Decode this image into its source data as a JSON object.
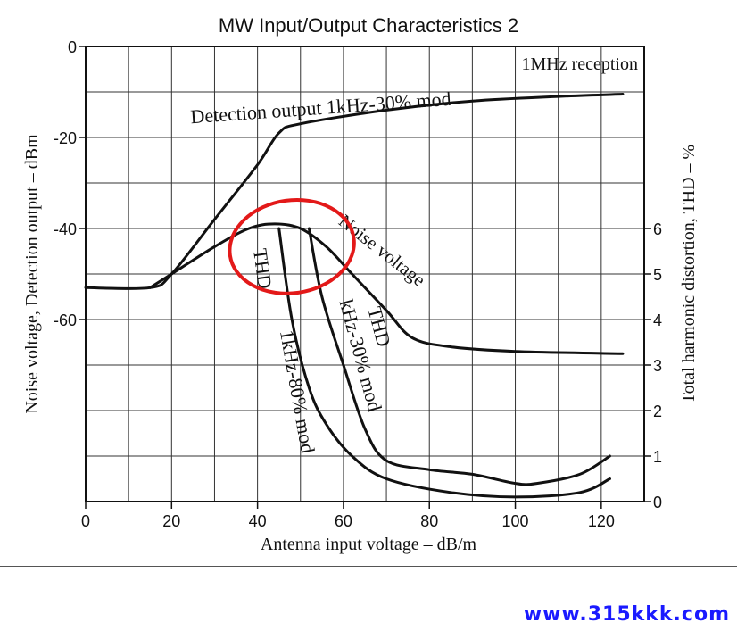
{
  "chart_data": {
    "type": "line",
    "title": "MW Input/Output Characteristics 2",
    "xlabel": "Antenna input voltage  –  dB/m",
    "ylabel_left": "Noise voltage, Detection output  –  dBm",
    "ylabel_right": "Total harmonic distortion, THD  –  %",
    "xlim": [
      0,
      130
    ],
    "ylim_left": [
      -100,
      0
    ],
    "ylim_right": [
      0,
      10
    ],
    "x_ticks": [
      "0",
      "20",
      "40",
      "60",
      "80",
      "100",
      "120"
    ],
    "y_left_ticks": [
      "0",
      "-20",
      "-40",
      "-60"
    ],
    "y_right_ticks": [
      "0",
      "1",
      "2",
      "3",
      "4",
      "5",
      "6"
    ],
    "annotation": "1MHz reception",
    "grid": true,
    "highlight": {
      "shape": "ellipse",
      "color": "#e31919",
      "center": [
        48,
        -44
      ]
    },
    "series": [
      {
        "name": "Detection output 1kHz-30% mod",
        "axis": "left",
        "points": [
          [
            0,
            -53
          ],
          [
            15,
            -53
          ],
          [
            20,
            -50
          ],
          [
            30,
            -38
          ],
          [
            40,
            -26
          ],
          [
            45,
            -19
          ],
          [
            50,
            -17
          ],
          [
            70,
            -14
          ],
          [
            90,
            -12
          ],
          [
            110,
            -11
          ],
          [
            125,
            -10.5
          ]
        ]
      },
      {
        "name": "Noise voltage",
        "axis": "left",
        "points": [
          [
            15,
            -53
          ],
          [
            20,
            -50
          ],
          [
            30,
            -44
          ],
          [
            38,
            -40
          ],
          [
            44,
            -39
          ],
          [
            50,
            -40
          ],
          [
            56,
            -44
          ],
          [
            62,
            -50
          ],
          [
            70,
            -58
          ],
          [
            76,
            -64
          ],
          [
            85,
            -66
          ],
          [
            100,
            -67
          ],
          [
            125,
            -67.5
          ]
        ]
      },
      {
        "name": "THD kHz-30% mod",
        "axis": "right",
        "points": [
          [
            52,
            6
          ],
          [
            55,
            4.5
          ],
          [
            60,
            3
          ],
          [
            65,
            1.6
          ],
          [
            70,
            0.9
          ],
          [
            80,
            0.7
          ],
          [
            90,
            0.6
          ],
          [
            100,
            0.4
          ],
          [
            105,
            0.4
          ],
          [
            115,
            0.6
          ],
          [
            122,
            1.0
          ]
        ]
      },
      {
        "name": "THD 1kHz-80% mod",
        "axis": "right",
        "points": [
          [
            45,
            6
          ],
          [
            48,
            4
          ],
          [
            52,
            2.5
          ],
          [
            56,
            1.7
          ],
          [
            62,
            1.0
          ],
          [
            70,
            0.5
          ],
          [
            85,
            0.2
          ],
          [
            100,
            0.1
          ],
          [
            115,
            0.2
          ],
          [
            122,
            0.5
          ]
        ]
      }
    ]
  },
  "footer": {
    "website": "www.315kkk.com"
  }
}
